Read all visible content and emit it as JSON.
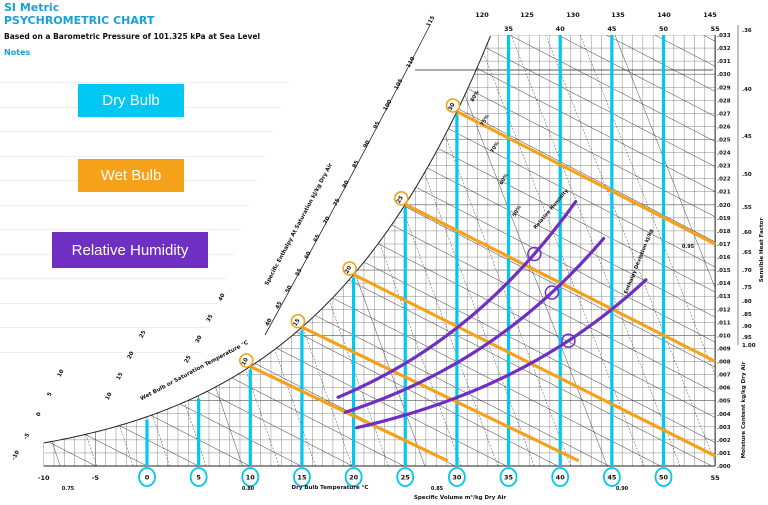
{
  "header": {
    "subtitle": "SI Metric",
    "title": "PSYCHROMETRIC CHART",
    "pressure_note": "Based on a Barometric Pressure of 101.325 kPa at Sea Level",
    "notes_label": "Notes"
  },
  "legend": {
    "dry_bulb": "Dry Bulb",
    "wet_bulb": "Wet Bulb",
    "relative_humidity": "Relative Humidity"
  },
  "colors": {
    "accent_title": "#1aa0d8",
    "dry_bulb": "#00c8f2",
    "wet_bulb": "#f6a11a",
    "relative_humidity": "#6f2fc2",
    "grid": "#444444"
  },
  "chart_data": {
    "type": "psychrometric",
    "pressure_kpa": 101.325,
    "xlabel": "Dry Bulb Temperature °C",
    "ylabel": "Moisture Content kg/kg Dry Air",
    "enthalpy_label": "Specific Enthalpy At Saturation kJ/kg Dry Air",
    "wet_bulb_label": "Wet Bulb or Saturation Temperature °C",
    "volume_label": "Specific Volume m³/kg Dry Air",
    "shf_label": "Sensible Heat Factor",
    "rh_label": "Relative Humidity",
    "enthalpy_dev_label": "Enthalpy Deviation kJ/kg",
    "xlim": [
      -10,
      55
    ],
    "ylim": [
      0,
      0.033
    ],
    "x_ticks_plain": [
      "-10",
      "-5",
      "55"
    ],
    "x_ticks_circled": [
      "0",
      "5",
      "10",
      "15",
      "20",
      "25",
      "30",
      "35",
      "40",
      "45",
      "50"
    ],
    "top_x_ticks": [
      "35",
      "40",
      "45",
      "50",
      "55"
    ],
    "y_ticks": [
      ".000",
      ".001",
      ".002",
      ".003",
      ".004",
      ".005",
      ".006",
      ".007",
      ".008",
      ".009",
      ".010",
      ".011",
      ".012",
      ".013",
      ".014",
      ".015",
      ".016",
      ".017",
      ".018",
      ".019",
      ".020",
      ".021",
      ".022",
      ".023",
      ".024",
      ".025",
      ".026",
      ".027",
      ".028",
      ".029",
      ".030",
      ".031",
      ".032",
      ".033"
    ],
    "shf_ticks": [
      ".36",
      ".40",
      ".45",
      ".50",
      ".55",
      ".60",
      ".65",
      ".70",
      ".75",
      ".80",
      ".85",
      ".90",
      ".95",
      "1.00"
    ],
    "enthalpy_ticks": [
      "40",
      "45",
      "50",
      "55",
      "60",
      "65",
      "70",
      "75",
      "80",
      "85",
      "90",
      "95",
      "100",
      "105",
      "110",
      "115"
    ],
    "top_enthalpy_ticks": [
      "120",
      "125",
      "130",
      "135",
      "140",
      "145"
    ],
    "wet_bulb_ticks": [
      "-10",
      "-5",
      "0",
      "5",
      "10",
      "10",
      "15",
      "20",
      "25",
      "25",
      "30",
      "35",
      "40"
    ],
    "volume_ticks": [
      "0.75",
      "0.80",
      "0.85",
      "0.90"
    ],
    "rh_ticks": [
      "80%",
      "75%",
      "70%",
      "60%",
      "50%"
    ],
    "shf_curve_label": "0.95",
    "dry_bulb_lines": [
      0,
      5,
      10,
      15,
      20,
      25,
      30,
      35,
      40,
      45,
      50
    ],
    "wet_bulb_lines": [
      {
        "label": "10",
        "value": 10
      },
      {
        "label": "15",
        "value": 15
      },
      {
        "label": "20",
        "value": 20
      },
      {
        "label": "25",
        "value": 25
      },
      {
        "label": "30",
        "value": 30
      }
    ],
    "rh_curves": [
      {
        "rh": 0.4,
        "t_range": [
          18.5,
          41.5
        ]
      },
      {
        "rh": 0.3,
        "t_range": [
          19.2,
          44.4
        ]
      },
      {
        "rh": 0.2,
        "t_range": [
          20.3,
          48.3
        ]
      }
    ],
    "grid": true
  }
}
